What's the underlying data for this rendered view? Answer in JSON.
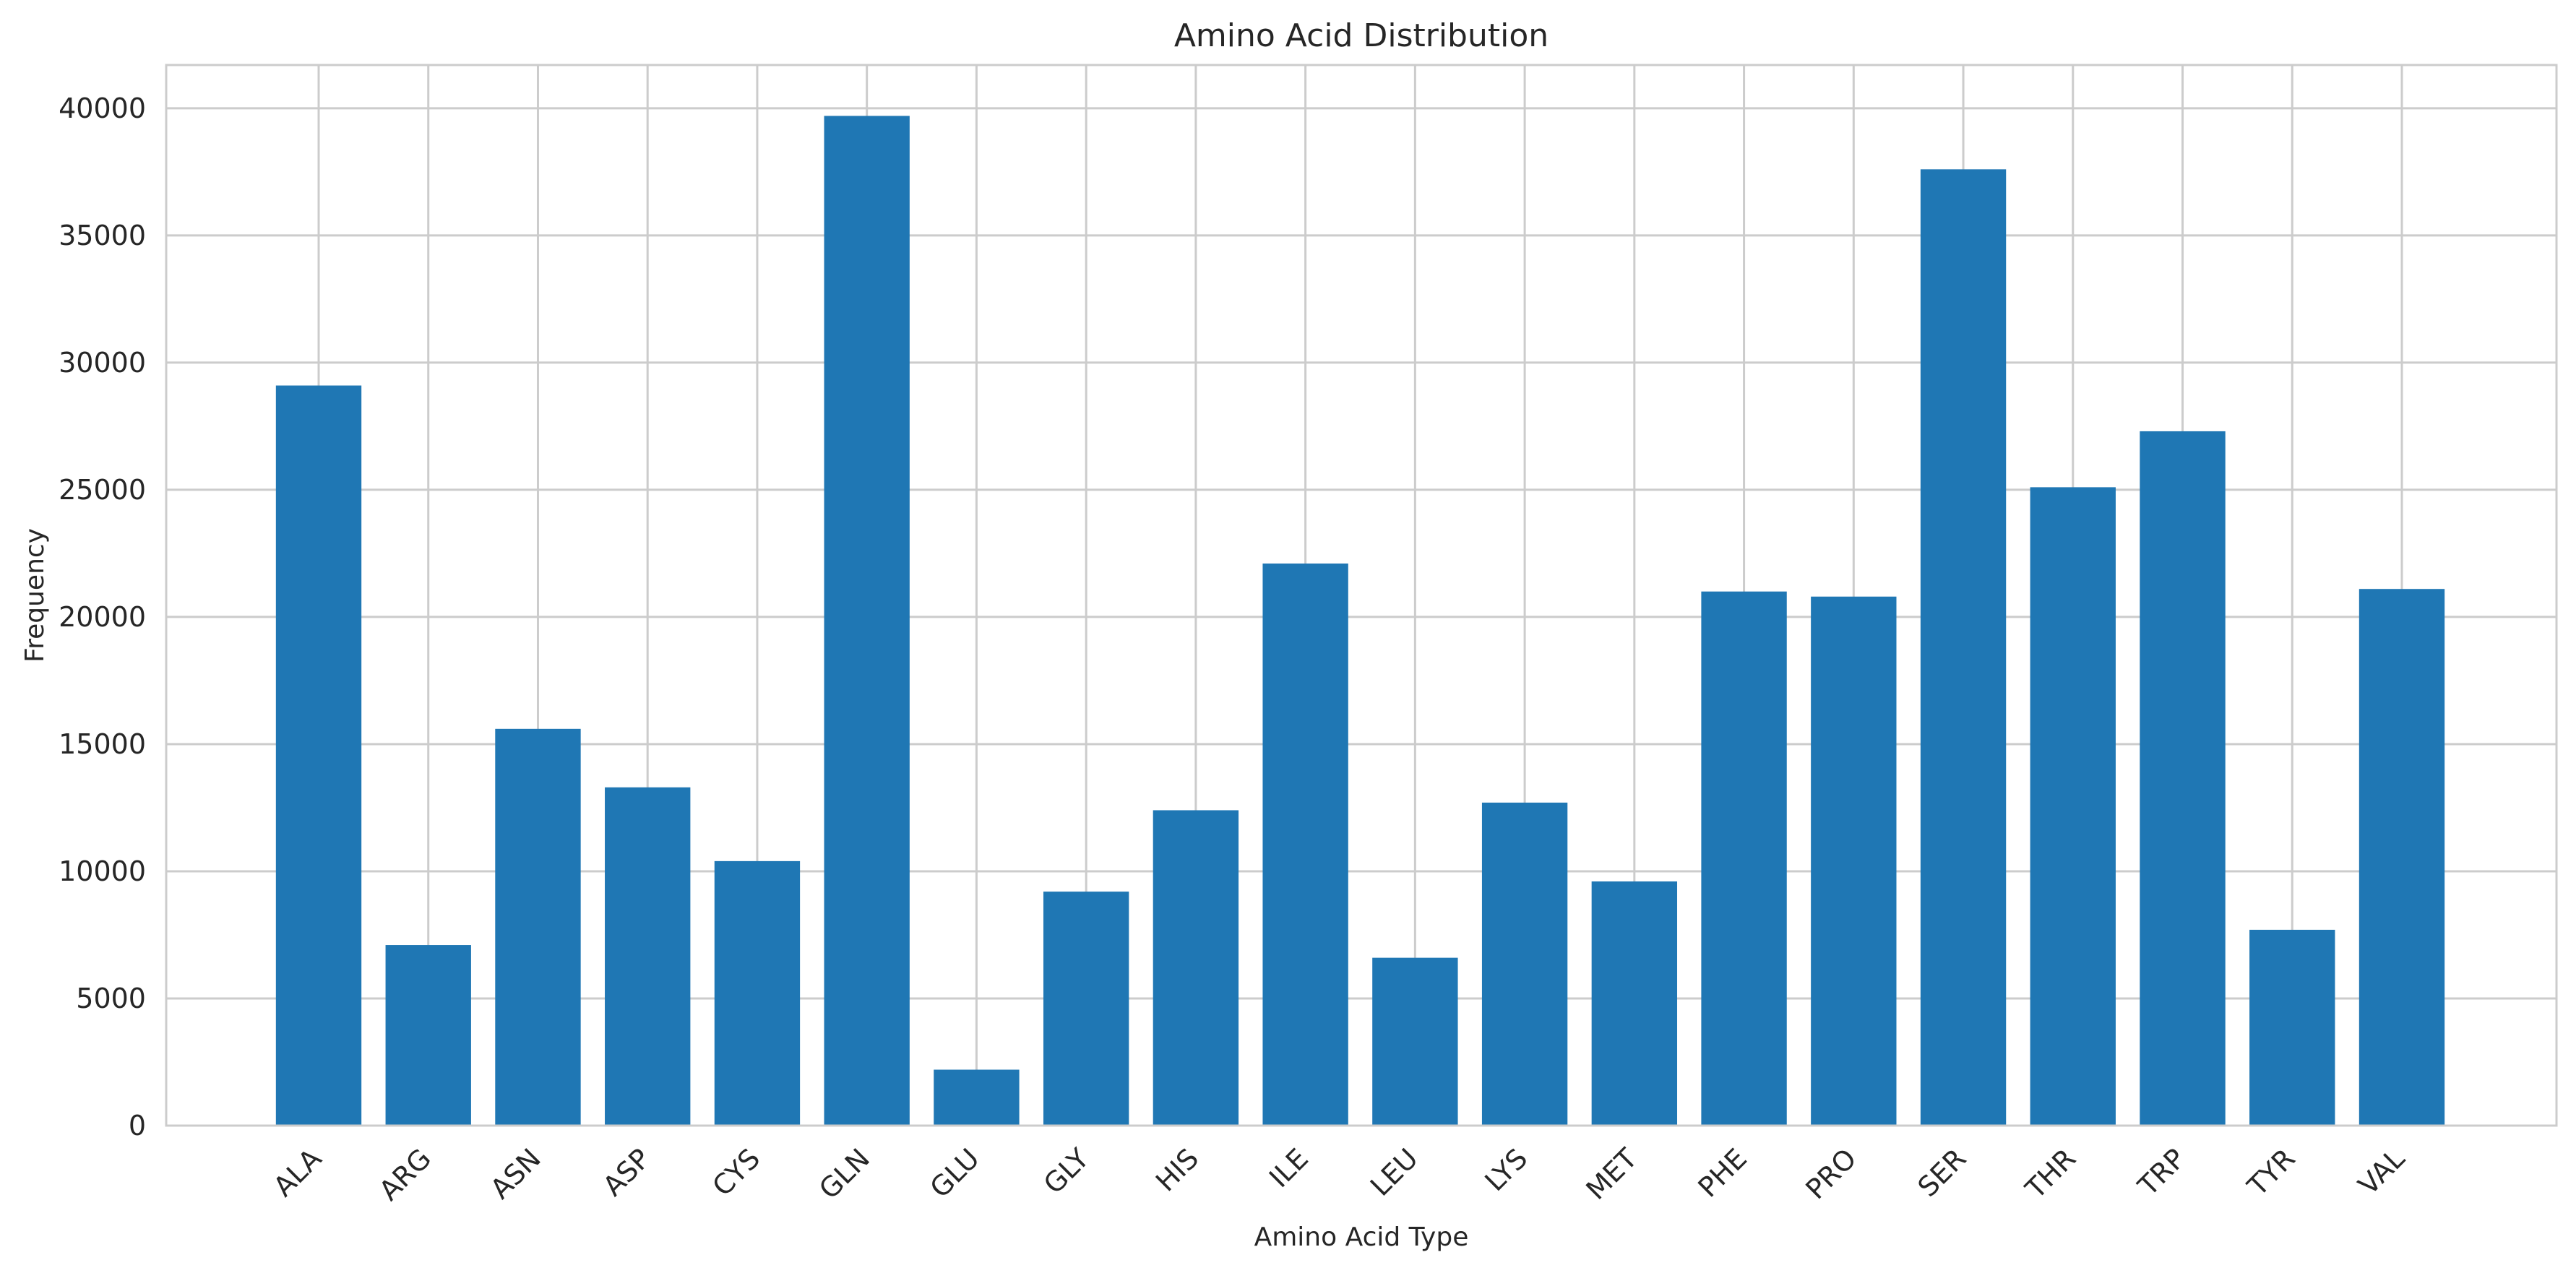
{
  "chart_data": {
    "type": "bar",
    "title": "Amino Acid Distribution",
    "xlabel": "Amino Acid Type",
    "ylabel": "Frequency",
    "categories": [
      "ALA",
      "ARG",
      "ASN",
      "ASP",
      "CYS",
      "GLN",
      "GLU",
      "GLY",
      "HIS",
      "ILE",
      "LEU",
      "LYS",
      "MET",
      "PHE",
      "PRO",
      "SER",
      "THR",
      "TRP",
      "TYR",
      "VAL"
    ],
    "values": [
      29100,
      7100,
      15600,
      13300,
      10400,
      39700,
      2200,
      9200,
      12400,
      22100,
      6600,
      12700,
      9600,
      21000,
      20800,
      37600,
      25100,
      27300,
      7700,
      21100
    ],
    "ylim": [
      0,
      41700
    ],
    "yticks": [
      0,
      5000,
      10000,
      15000,
      20000,
      25000,
      30000,
      35000,
      40000
    ],
    "grid": true,
    "bar_color": "#1f77b4",
    "grid_color": "#cccccc",
    "x_tick_rotation": 45
  }
}
